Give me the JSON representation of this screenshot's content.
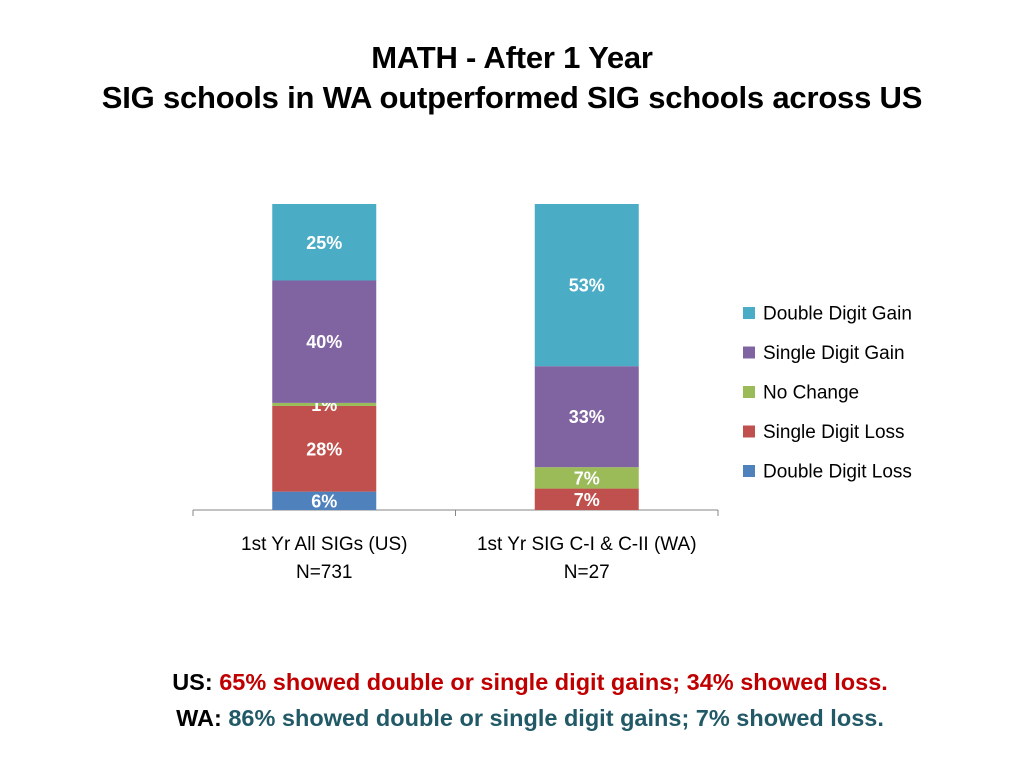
{
  "title": {
    "line1": "MATH - After 1 Year",
    "line2": "SIG schools in WA outperformed SIG schools across US"
  },
  "chart_data": {
    "type": "bar",
    "stacked": true,
    "orientation": "vertical",
    "ylim": [
      0,
      100
    ],
    "categories": [
      {
        "line1": "1st Yr All SIGs (US)",
        "line2": "N=731"
      },
      {
        "line1": "1st Yr SIG C-I & C-II (WA)",
        "line2": "N=27"
      }
    ],
    "series": [
      {
        "name": "Double Digit Loss",
        "color": "#4f81bd",
        "values": [
          6,
          0
        ],
        "labels": [
          "6%",
          ""
        ]
      },
      {
        "name": "Single Digit Loss",
        "color": "#c0504d",
        "values": [
          28,
          7
        ],
        "labels": [
          "28%",
          "7%"
        ]
      },
      {
        "name": "No Change",
        "color": "#9bbb59",
        "values": [
          1,
          7
        ],
        "labels": [
          "1%",
          "7%"
        ]
      },
      {
        "name": "Single Digit Gain",
        "color": "#8064a2",
        "values": [
          40,
          33
        ],
        "labels": [
          "40%",
          "33%"
        ]
      },
      {
        "name": "Double Digit Gain",
        "color": "#4bacc6",
        "values": [
          25,
          53
        ],
        "labels": [
          "25%",
          "53%"
        ]
      }
    ],
    "legend_position": "right",
    "grid": false
  },
  "footer": {
    "us_label": "US:",
    "us_text": "65% showed double or single digit gains; 34% showed loss.",
    "wa_label": "WA:",
    "wa_text": "86% showed double or single digit gains; 7% showed loss."
  }
}
